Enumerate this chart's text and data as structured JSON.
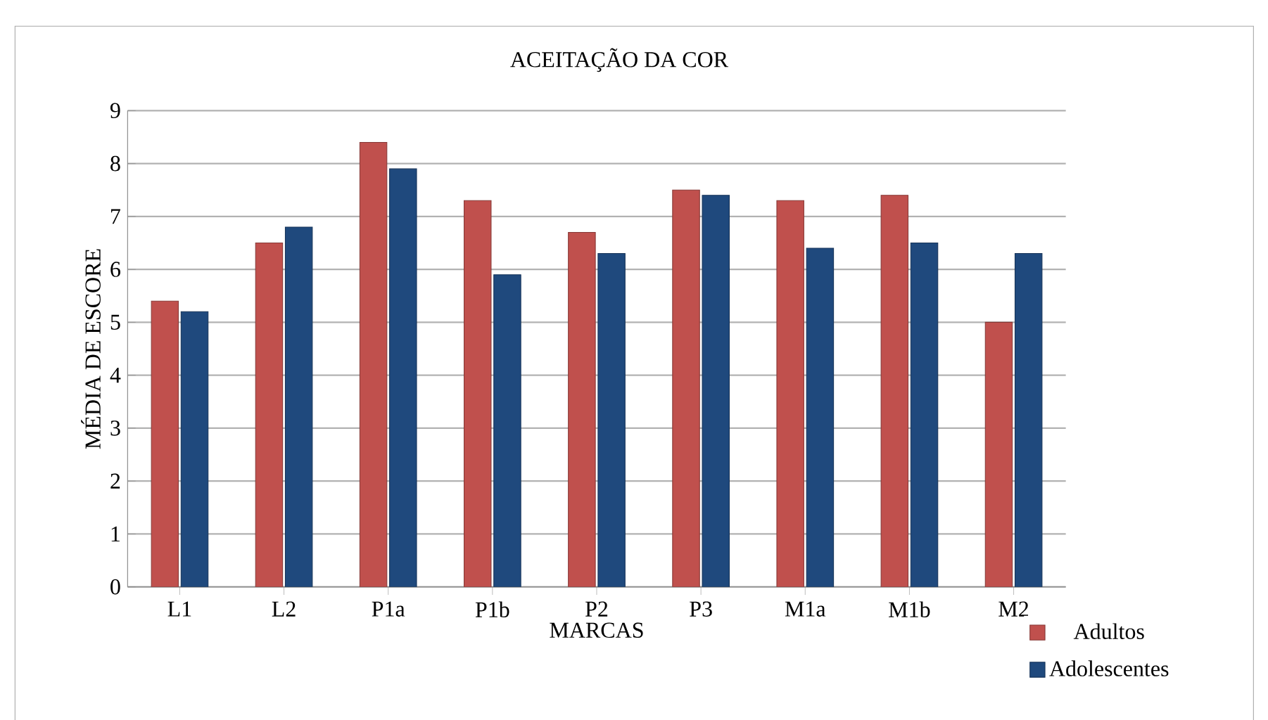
{
  "chart_data": {
    "type": "bar",
    "title": "ACEITAÇÃO DA COR",
    "xlabel": "MARCAS",
    "ylabel": "MÉDIA DE ESCORE",
    "categories": [
      "L1",
      "L2",
      "P1a",
      "P1b",
      "P2",
      "P3",
      "M1a",
      "M1b",
      "M2"
    ],
    "series": [
      {
        "name": "Adultos",
        "color": "#c0504d",
        "values": [
          5.4,
          6.5,
          8.4,
          7.3,
          6.7,
          7.5,
          7.3,
          7.4,
          5.0
        ]
      },
      {
        "name": "Adolescentes",
        "color": "#1f497d",
        "values": [
          5.2,
          6.8,
          7.9,
          5.9,
          6.3,
          7.4,
          6.4,
          6.5,
          6.3
        ]
      }
    ],
    "ylim": [
      0,
      9
    ],
    "yticks": [
      0,
      1,
      2,
      3,
      4,
      5,
      6,
      7,
      8,
      9
    ],
    "grid": "y",
    "legend": "bottom right"
  }
}
